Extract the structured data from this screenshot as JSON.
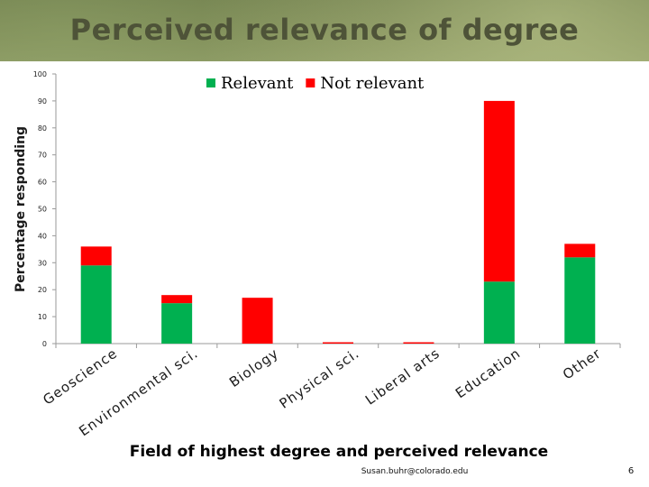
{
  "slide": {
    "title": "Perceived relevance of degree",
    "email": "Susan.buhr@colorado.edu",
    "page_number": "6"
  },
  "chart_data": {
    "type": "bar",
    "stacked": true,
    "xlabel": "Field of highest degree and perceived relevance",
    "ylabel": "Percentage responding",
    "ylim": [
      0,
      100
    ],
    "yticks": [
      0,
      10,
      20,
      30,
      40,
      50,
      60,
      70,
      80,
      90,
      100
    ],
    "grid": false,
    "legend_position": "top",
    "categories": [
      "Geoscience",
      "Environmental sci.",
      "Biology",
      "Physical sci.",
      "Liberal arts",
      "Education",
      "Other"
    ],
    "series": [
      {
        "name": "Relevant",
        "color": "#00b050",
        "values": [
          29,
          15,
          0,
          0,
          0,
          23,
          32
        ]
      },
      {
        "name": "Not relevant",
        "color": "#ff0000",
        "values": [
          7,
          3,
          17,
          0.5,
          0.5,
          67,
          5
        ]
      }
    ]
  }
}
